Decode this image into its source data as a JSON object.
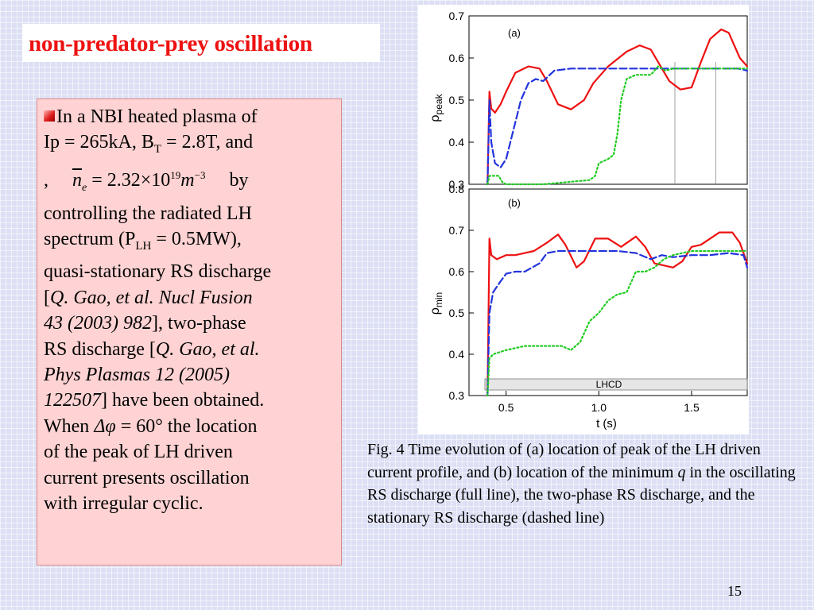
{
  "slide": {
    "title": "non-predator-prey oscillation",
    "page_number": "15",
    "colors": {
      "title": "#ee1111",
      "text_box_bg": "#ffd3d3",
      "slide_bg": "#dde0f4"
    }
  },
  "body": {
    "l1": "In a NBI heated plasma of",
    "l2a": "Ip = 265kA, B",
    "l2sub": "T",
    "l2b": " = 2.8T, and",
    "l3comma": ",",
    "l3n": "n",
    "l3nsub": "e",
    "l3eq": " = 2.32×10",
    "l3exp": "19",
    "l3m": "m",
    "l3mexp": "−3",
    "l3by": "by",
    "l4": "controlling the radiated LH",
    "l5a": "spectrum (P",
    "l5sub": "LH",
    "l5b": " = 0.5MW),",
    "l6": "quasi-stationary RS discharge",
    "l7a": "[",
    "l7i": "Q. Gao, et al. Nucl Fusion",
    "l8i": "43 (2003) 982",
    "l8b": "], two-phase",
    "l9a": "RS discharge [",
    "l9i": "Q. Gao, et al.",
    "l10i": "Phys Plasmas 12 (2005)",
    "l11i": "122507",
    "l11b": "] have been obtained.",
    "l12a": "When ",
    "l12i": "Δφ",
    "l12b": " = 60° the location",
    "l13": "of the peak of LH driven",
    "l14": "current presents oscillation",
    "l15": "with irregular cyclic."
  },
  "caption": {
    "a": "Fig. 4 Time evolution of (a) location of peak of the LH driven current profile, and (b) location of the minimum ",
    "q": "q",
    "b": " in the oscillating RS discharge (full line), the two-phase RS discharge, and the stationary RS discharge (dashed line)"
  },
  "chart_data": [
    {
      "type": "line",
      "panel_label": "(a)",
      "ylabel_main": "ρ",
      "ylabel_sub": "peak",
      "xlim": [
        0.3,
        1.8
      ],
      "ylim": [
        0.3,
        0.7
      ],
      "yticks": [
        "0.3",
        "0.4",
        "0.5",
        "0.6",
        "0.7"
      ],
      "vlines": [
        1.41,
        1.63
      ],
      "series": [
        {
          "style": "solid",
          "color": "#ee1111",
          "x": [
            0.4,
            0.41,
            0.42,
            0.44,
            0.47,
            0.5,
            0.55,
            0.62,
            0.68,
            0.72,
            0.78,
            0.85,
            0.92,
            0.97,
            1.05,
            1.15,
            1.22,
            1.28,
            1.32,
            1.38,
            1.44,
            1.5,
            1.55,
            1.6,
            1.66,
            1.7,
            1.76,
            1.8
          ],
          "y": [
            0.3,
            0.52,
            0.48,
            0.47,
            0.49,
            0.52,
            0.565,
            0.58,
            0.575,
            0.545,
            0.49,
            0.478,
            0.5,
            0.54,
            0.58,
            0.615,
            0.63,
            0.62,
            0.59,
            0.545,
            0.525,
            0.53,
            0.59,
            0.645,
            0.668,
            0.66,
            0.6,
            0.58
          ]
        },
        {
          "style": "dashed",
          "color": "#2233dd",
          "x": [
            0.4,
            0.41,
            0.42,
            0.44,
            0.47,
            0.5,
            0.54,
            0.58,
            0.62,
            0.66,
            0.7,
            0.76,
            0.85,
            1.0,
            1.3,
            1.6,
            1.75,
            1.8
          ],
          "y": [
            0.3,
            0.5,
            0.4,
            0.35,
            0.34,
            0.36,
            0.43,
            0.5,
            0.54,
            0.55,
            0.545,
            0.57,
            0.575,
            0.575,
            0.575,
            0.575,
            0.575,
            0.57
          ]
        },
        {
          "style": "dotted",
          "color": "#22cc22",
          "x": [
            0.4,
            0.41,
            0.43,
            0.46,
            0.48,
            0.5,
            0.55,
            0.7,
            0.95,
            0.98,
            1.0,
            1.05,
            1.08,
            1.1,
            1.12,
            1.15,
            1.2,
            1.24,
            1.28,
            1.32,
            1.36,
            1.4,
            1.5,
            1.8
          ],
          "y": [
            0.3,
            0.32,
            0.32,
            0.32,
            0.305,
            0.3,
            0.3,
            0.3,
            0.31,
            0.32,
            0.35,
            0.36,
            0.37,
            0.42,
            0.5,
            0.55,
            0.56,
            0.56,
            0.56,
            0.58,
            0.57,
            0.575,
            0.575,
            0.575
          ]
        }
      ]
    },
    {
      "type": "line",
      "panel_label": "(b)",
      "ylabel_main": "ρ",
      "ylabel_sub": "min",
      "xlabel": "t (s)",
      "xlim": [
        0.3,
        1.8
      ],
      "ylim": [
        0.3,
        0.8
      ],
      "xticks": [
        "0.5",
        "1.0",
        "1.5"
      ],
      "yticks": [
        "0.3",
        "0.4",
        "0.5",
        "0.6",
        "0.7",
        "0.8"
      ],
      "band_label": "LHCD",
      "series": [
        {
          "style": "solid",
          "color": "#ee1111",
          "x": [
            0.4,
            0.41,
            0.42,
            0.45,
            0.5,
            0.55,
            0.65,
            0.72,
            0.78,
            0.82,
            0.88,
            0.92,
            0.98,
            1.05,
            1.12,
            1.2,
            1.25,
            1.3,
            1.35,
            1.4,
            1.45,
            1.5,
            1.55,
            1.6,
            1.65,
            1.72,
            1.76,
            1.8
          ],
          "y": [
            0.3,
            0.68,
            0.64,
            0.63,
            0.64,
            0.64,
            0.65,
            0.67,
            0.69,
            0.665,
            0.61,
            0.625,
            0.68,
            0.68,
            0.66,
            0.685,
            0.66,
            0.62,
            0.615,
            0.61,
            0.625,
            0.66,
            0.665,
            0.68,
            0.695,
            0.695,
            0.67,
            0.62
          ]
        },
        {
          "style": "dashed",
          "color": "#2233dd",
          "x": [
            0.4,
            0.41,
            0.43,
            0.46,
            0.5,
            0.55,
            0.6,
            0.68,
            0.72,
            0.78,
            0.9,
            1.0,
            1.1,
            1.2,
            1.28,
            1.34,
            1.4,
            1.5,
            1.6,
            1.7,
            1.78,
            1.8
          ],
          "y": [
            0.3,
            0.5,
            0.55,
            0.57,
            0.595,
            0.6,
            0.6,
            0.62,
            0.645,
            0.65,
            0.65,
            0.65,
            0.65,
            0.645,
            0.63,
            0.64,
            0.635,
            0.64,
            0.64,
            0.645,
            0.64,
            0.61
          ]
        },
        {
          "style": "dotted",
          "color": "#22cc22",
          "x": [
            0.4,
            0.41,
            0.43,
            0.5,
            0.6,
            0.8,
            0.85,
            0.9,
            0.95,
            1.0,
            1.05,
            1.1,
            1.15,
            1.2,
            1.25,
            1.3,
            1.35,
            1.4,
            1.5,
            1.6,
            1.75,
            1.8
          ],
          "y": [
            0.3,
            0.39,
            0.4,
            0.41,
            0.42,
            0.42,
            0.41,
            0.43,
            0.48,
            0.5,
            0.53,
            0.545,
            0.55,
            0.6,
            0.6,
            0.61,
            0.63,
            0.64,
            0.65,
            0.65,
            0.65,
            0.65
          ]
        }
      ]
    }
  ]
}
